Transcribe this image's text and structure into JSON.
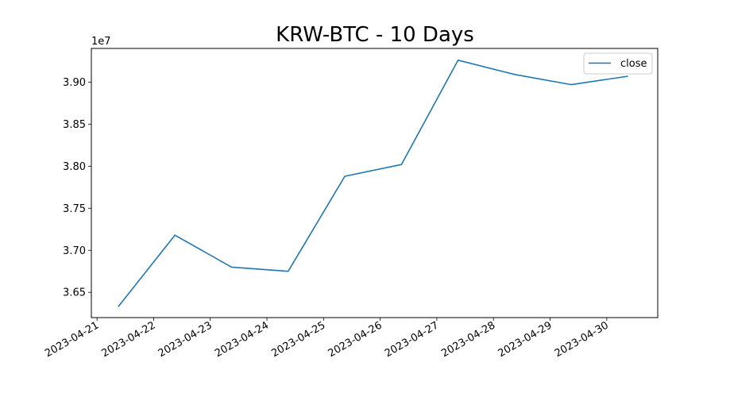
{
  "chart_data": {
    "type": "line",
    "title": "KRW-BTC - 10 Days",
    "xlabel": "",
    "ylabel": "",
    "y_offset_label": "1e7",
    "x_tick_labels": [
      "2023-04-21",
      "2023-04-22",
      "2023-04-23",
      "2023-04-24",
      "2023-04-25",
      "2023-04-26",
      "2023-04-27",
      "2023-04-28",
      "2023-04-29",
      "2023-04-30"
    ],
    "y_tick_labels": [
      "3.65",
      "3.70",
      "3.75",
      "3.80",
      "3.85",
      "3.90"
    ],
    "y_ticks": [
      36500000,
      37000000,
      37500000,
      38000000,
      38500000,
      39000000
    ],
    "xlim": [
      "2023-04-20 21:36",
      "2023-04-30 21:36"
    ],
    "ylim": [
      36200000,
      39400000
    ],
    "x": [
      "2023-04-21 09:00",
      "2023-04-22 09:00",
      "2023-04-23 09:00",
      "2023-04-24 09:00",
      "2023-04-25 09:00",
      "2023-04-26 09:00",
      "2023-04-27 09:00",
      "2023-04-28 09:00",
      "2023-04-29 09:00",
      "2023-04-30 09:00"
    ],
    "series": [
      {
        "name": "close",
        "color": "#1f77b4",
        "values": [
          36330000,
          37180000,
          36800000,
          36750000,
          37880000,
          38020000,
          39260000,
          39090000,
          38970000,
          39070000
        ]
      }
    ],
    "legend": "top-right",
    "grid": false
  }
}
